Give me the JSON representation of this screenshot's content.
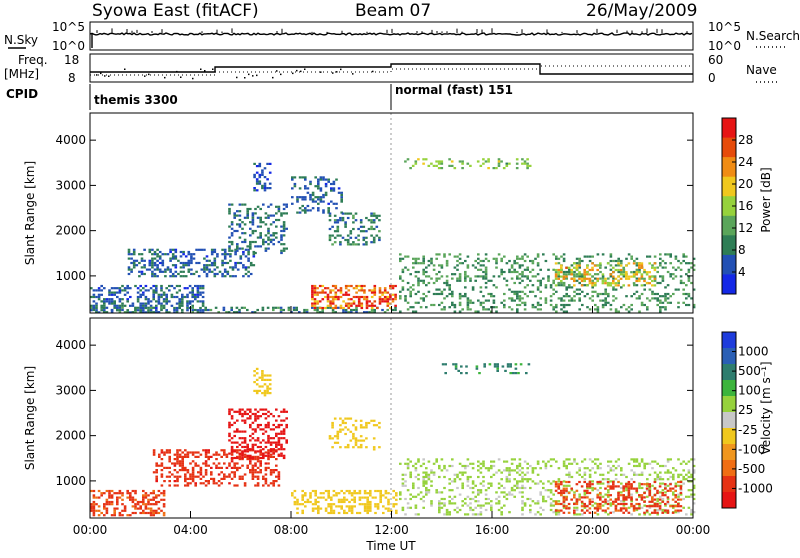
{
  "header": {
    "station": "Syowa East (fitACF)",
    "beam": "Beam 07",
    "date": "26/May/2009"
  },
  "noise_panel": {
    "left_label": "N.Sky",
    "right_label": "N.Search",
    "left_ticks": [
      "10^5",
      "10^0"
    ],
    "right_ticks": [
      "10^5",
      "10^0"
    ]
  },
  "freq_panel": {
    "left_label_line1": "Freq.",
    "left_label_line2": "[MHz]",
    "right_label": "Nave",
    "left_ticks": [
      "18",
      "8"
    ],
    "right_ticks": [
      "60",
      "0"
    ]
  },
  "cpid_panel": {
    "label": "CPID",
    "segments": [
      {
        "name": "themis 3300",
        "start_hour": 0,
        "end_hour": 12
      },
      {
        "name": "normal (fast) 151",
        "start_hour": 12,
        "end_hour": 24
      }
    ]
  },
  "colors": {
    "power_scale": [
      "#1428e6",
      "#2250b4",
      "#2e7d55",
      "#5aa55a",
      "#96d23c",
      "#f0c81e",
      "#f08c14",
      "#e64b0a",
      "#e61414"
    ],
    "velocity_scale": [
      "#1e3cdc",
      "#2a5fb5",
      "#2e7d6e",
      "#3cb43c",
      "#96d23c",
      "#c8c8c8",
      "#f0c81e",
      "#f0961e",
      "#f06e14",
      "#e63214",
      "#e61414"
    ]
  },
  "chart_data": [
    {
      "type": "heatmap",
      "title": "Power",
      "xlabel": "",
      "ylabel": "Slant Range [km]",
      "xlim": [
        0,
        24
      ],
      "ylim": [
        180,
        4600
      ],
      "y_ticks": [
        "4000",
        "3000",
        "2000",
        "1000"
      ],
      "colorbar": {
        "label": "Power [dB]",
        "ticks": [
          "28",
          "24",
          "20",
          "16",
          "12",
          "8",
          "4"
        ],
        "range": [
          0,
          30
        ]
      },
      "regions": [
        {
          "t0": 0.0,
          "t1": 4.5,
          "r0": 200,
          "r1": 800,
          "value": 6,
          "density": 0.85
        },
        {
          "t0": 0.0,
          "t1": 12.2,
          "r0": 180,
          "r1": 320,
          "value": 8,
          "density": 0.6
        },
        {
          "t0": 1.5,
          "t1": 6.5,
          "r0": 1000,
          "r1": 1600,
          "value": 6,
          "density": 0.7
        },
        {
          "t0": 5.5,
          "t1": 7.8,
          "r0": 1500,
          "r1": 2600,
          "value": 7,
          "density": 0.6
        },
        {
          "t0": 6.5,
          "t1": 7.2,
          "r0": 2900,
          "r1": 3500,
          "value": 5,
          "density": 0.8
        },
        {
          "t0": 8.8,
          "t1": 12.2,
          "r0": 300,
          "r1": 800,
          "value": 25,
          "density": 0.9
        },
        {
          "t0": 8.0,
          "t1": 10.0,
          "r0": 2400,
          "r1": 3200,
          "value": 6,
          "density": 0.5
        },
        {
          "t0": 9.5,
          "t1": 11.5,
          "r0": 1700,
          "r1": 2400,
          "value": 8,
          "density": 0.5
        },
        {
          "t0": 12.3,
          "t1": 24.0,
          "r0": 200,
          "r1": 1500,
          "value": 10,
          "density": 0.45
        },
        {
          "t0": 18.5,
          "t1": 22.5,
          "r0": 800,
          "r1": 1300,
          "value": 18,
          "density": 0.6
        },
        {
          "t0": 12.5,
          "t1": 17.5,
          "r0": 3400,
          "r1": 3600,
          "value": 14,
          "density": 0.4
        }
      ]
    },
    {
      "type": "heatmap",
      "title": "Velocity",
      "xlabel": "Time UT",
      "ylabel": "Slant Range [km]",
      "xlim": [
        0,
        24
      ],
      "ylim": [
        180,
        4600
      ],
      "x_ticks": [
        "00:00",
        "04:00",
        "08:00",
        "12:00",
        "16:00",
        "20:00",
        "00:00"
      ],
      "y_ticks": [
        "4000",
        "3000",
        "2000",
        "1000"
      ],
      "colorbar": {
        "label": "Velocity [m s⁻¹]",
        "ticks": [
          "1000",
          "500",
          "100",
          "25",
          "-25",
          "-100",
          "-500",
          "-1000"
        ]
      },
      "regions": [
        {
          "t0": 0.0,
          "t1": 3.0,
          "r0": 250,
          "r1": 800,
          "value": -300,
          "density": 0.85
        },
        {
          "t0": 2.5,
          "t1": 7.5,
          "r0": 900,
          "r1": 1700,
          "value": -400,
          "density": 0.7
        },
        {
          "t0": 5.5,
          "t1": 7.8,
          "r0": 1500,
          "r1": 2600,
          "value": -800,
          "density": 0.7
        },
        {
          "t0": 6.5,
          "t1": 7.2,
          "r0": 2900,
          "r1": 3500,
          "value": 0,
          "density": 0.7
        },
        {
          "t0": 8.0,
          "t1": 12.2,
          "r0": 300,
          "r1": 800,
          "value": 0,
          "density": 0.8
        },
        {
          "t0": 9.5,
          "t1": 11.5,
          "r0": 1700,
          "r1": 2400,
          "value": 0,
          "density": 0.5
        },
        {
          "t0": 12.3,
          "t1": 24.0,
          "r0": 250,
          "r1": 1500,
          "value": 60,
          "density": 0.45
        },
        {
          "t0": 18.5,
          "t1": 23.5,
          "r0": 300,
          "r1": 1000,
          "value": -300,
          "density": 0.6
        },
        {
          "t0": 14.0,
          "t1": 17.5,
          "r0": 3400,
          "r1": 3600,
          "value": 300,
          "density": 0.4
        }
      ]
    }
  ]
}
